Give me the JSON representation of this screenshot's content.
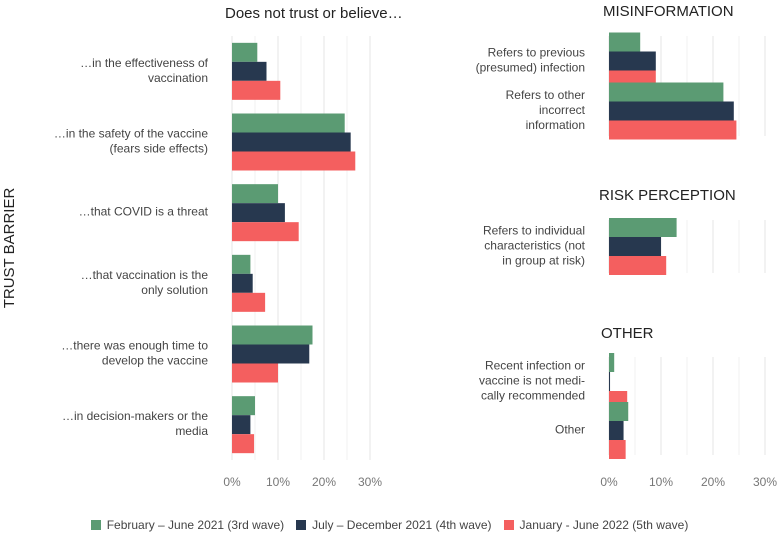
{
  "chart_data": {
    "type": "bar",
    "orientation": "horizontal",
    "ylabel": "TRUST BARRIER",
    "series_names": [
      "February – June 2021 (3rd wave)",
      "July – December 2021 (4th wave)",
      "January - June 2022 (5th wave)"
    ],
    "colors": [
      "#5b9b73",
      "#27384f",
      "#f45f5f"
    ],
    "xlim": [
      0,
      30
    ],
    "ticks": [
      "0%",
      "10%",
      "20%",
      "30%"
    ],
    "panels": [
      {
        "title": "Does not trust or believe…",
        "categories": [
          [
            "…in the effectiveness of",
            "vaccination"
          ],
          [
            "…in the safety of the vaccine",
            "(fears side effects)"
          ],
          [
            "…that COVID is a threat"
          ],
          [
            "…that vaccination is the",
            "only solution"
          ],
          [
            "…there was enough time to",
            "develop the vaccine"
          ],
          [
            "…in decision-makers or the",
            "media"
          ]
        ],
        "values": [
          [
            5.5,
            7.5,
            10.5
          ],
          [
            24.5,
            25.8,
            26.8
          ],
          [
            10.0,
            11.5,
            14.5
          ],
          [
            4.0,
            4.5,
            7.2
          ],
          [
            17.5,
            16.8,
            10.0
          ],
          [
            5.0,
            4.0,
            4.8
          ]
        ]
      },
      {
        "title": "MISINFORMATION",
        "categories": [
          [
            "Refers to previous",
            "(presumed) infection"
          ],
          [
            "Refers to other",
            "incorrect",
            "information"
          ]
        ],
        "values": [
          [
            6.0,
            9.0,
            9.0
          ],
          [
            22.0,
            24.0,
            24.5
          ]
        ]
      },
      {
        "title": "RISK PERCEPTION",
        "categories": [
          [
            "Refers to individual",
            "characteristics (not",
            "in group at risk)"
          ]
        ],
        "values": [
          [
            13.0,
            10.0,
            11.0
          ]
        ]
      },
      {
        "title": "OTHER",
        "categories": [
          [
            "Recent infection or",
            "vaccine is not medi-",
            "cally recommended"
          ],
          [
            "Other"
          ]
        ],
        "values": [
          [
            1.0,
            0.2,
            3.5
          ],
          [
            3.7,
            2.8,
            3.2
          ]
        ]
      }
    ]
  }
}
